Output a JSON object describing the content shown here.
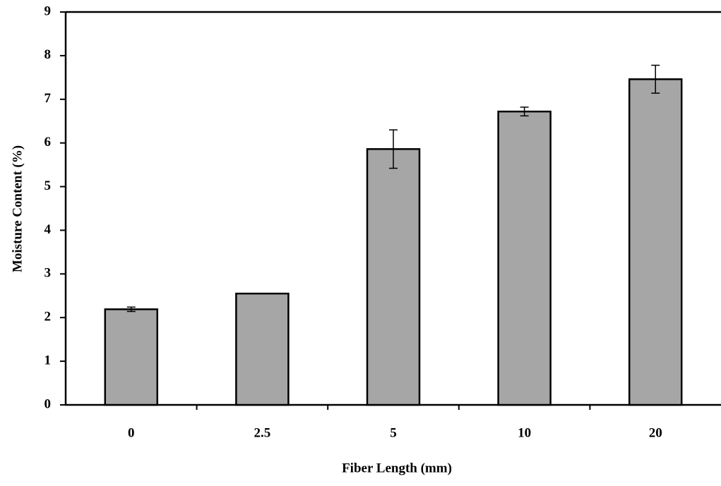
{
  "chart_data": {
    "type": "bar",
    "x_label": "Fiber Length (mm)",
    "y_label": "Moisture Content (%)",
    "categories": [
      "0",
      "2.5",
      "5",
      "10",
      "20"
    ],
    "values": [
      2.19,
      2.55,
      5.86,
      6.72,
      7.46
    ],
    "errors": [
      0.05,
      0,
      0.44,
      0.1,
      0.32
    ],
    "color": "#a6a6a6",
    "ylim": [
      0,
      9
    ],
    "yticks": [
      0,
      1,
      2,
      3,
      4,
      5,
      6,
      7,
      8,
      9
    ],
    "grid": false
  }
}
